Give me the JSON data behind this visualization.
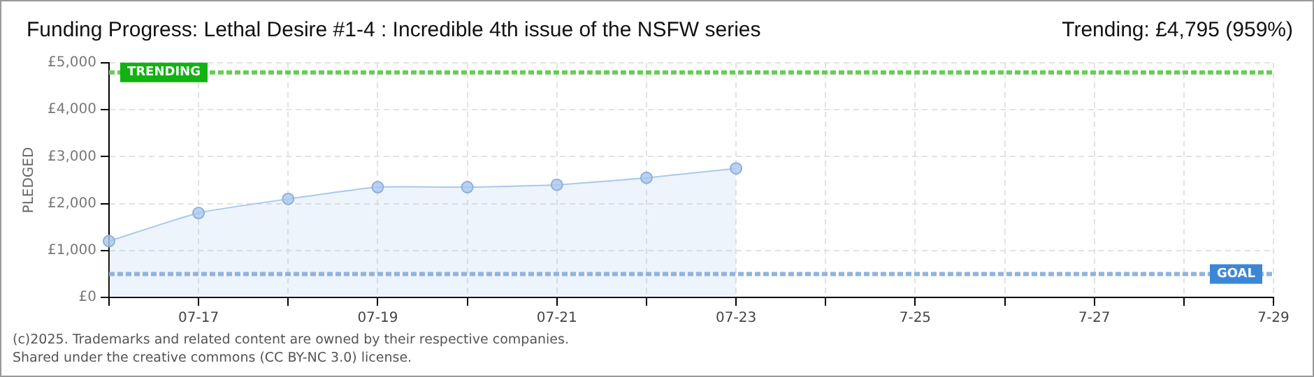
{
  "chart_data": {
    "type": "area",
    "title": "Funding Progress: Lethal Desire #1-4 : Incredible 4th issue of the NSFW series",
    "subtitle": "Trending:  £4,795 (959%)",
    "ylabel": "PLEDGED",
    "categories": [
      null,
      "07-17",
      null,
      "07-19",
      null,
      "07-21",
      null,
      "07-23",
      null,
      "7-25",
      null,
      "7-27",
      null,
      "7-29"
    ],
    "series": [
      {
        "color": "#a9c8ee",
        "values": [
          1200,
          1800,
          2100,
          2350,
          2350,
          2400,
          2550,
          2750,
          null,
          null,
          null,
          null,
          null,
          null
        ]
      }
    ],
    "ylim": [
      0,
      5000
    ],
    "yticks": [
      {
        "value": 0,
        "label": "£0"
      },
      {
        "value": 1000,
        "label": "£1,000"
      },
      {
        "value": 2000,
        "label": "£2,000"
      },
      {
        "value": 3000,
        "label": "£3,000"
      },
      {
        "value": 4000,
        "label": "£4,000"
      },
      {
        "value": 5000,
        "label": "£5,000"
      }
    ],
    "grid": true,
    "legend": false,
    "marker": "circle",
    "ref_lines": [
      {
        "axis": "y",
        "value": 4795,
        "label": "TRENDING",
        "color": "#66cc55",
        "line_style": "dashed"
      },
      {
        "axis": "y",
        "value": 500,
        "label": "GOAL",
        "color": "#8fb3e0",
        "line_style": "dashed"
      }
    ],
    "annotations": [
      "(c)2025. Trademarks and related content are owned by their respective companies.",
      "Shared under the creative commons (CC BY-NC 3.0) license."
    ]
  }
}
